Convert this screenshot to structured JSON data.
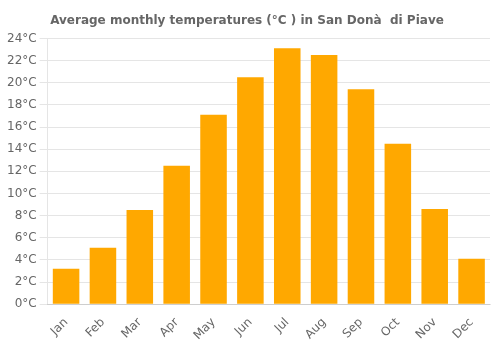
{
  "chart_data": {
    "type": "bar",
    "title": "Average monthly temperatures (°C ) in San Donà  di Piave",
    "categories": [
      "Jan",
      "Feb",
      "Mar",
      "Apr",
      "May",
      "Jun",
      "Jul",
      "Aug",
      "Sep",
      "Oct",
      "Nov",
      "Dec"
    ],
    "values": [
      3.2,
      5.1,
      8.5,
      12.5,
      17.1,
      20.5,
      23.1,
      22.5,
      19.4,
      14.5,
      8.6,
      4.1
    ],
    "color": "#FFA800",
    "ylim": [
      0,
      24
    ],
    "yticks": [
      {
        "value": 0,
        "label": "0°C"
      },
      {
        "value": 2,
        "label": "2°C"
      },
      {
        "value": 4,
        "label": "4°C"
      },
      {
        "value": 6,
        "label": "6°C"
      },
      {
        "value": 8,
        "label": "8°C"
      },
      {
        "value": 10,
        "label": "10°C"
      },
      {
        "value": 12,
        "label": "12°C"
      },
      {
        "value": 14,
        "label": "14°C"
      },
      {
        "value": 16,
        "label": "16°C"
      },
      {
        "value": 18,
        "label": "18°C"
      },
      {
        "value": 20,
        "label": "20°C"
      },
      {
        "value": 22,
        "label": "22°C"
      },
      {
        "value": 24,
        "label": "24°C"
      }
    ],
    "grid": true
  }
}
